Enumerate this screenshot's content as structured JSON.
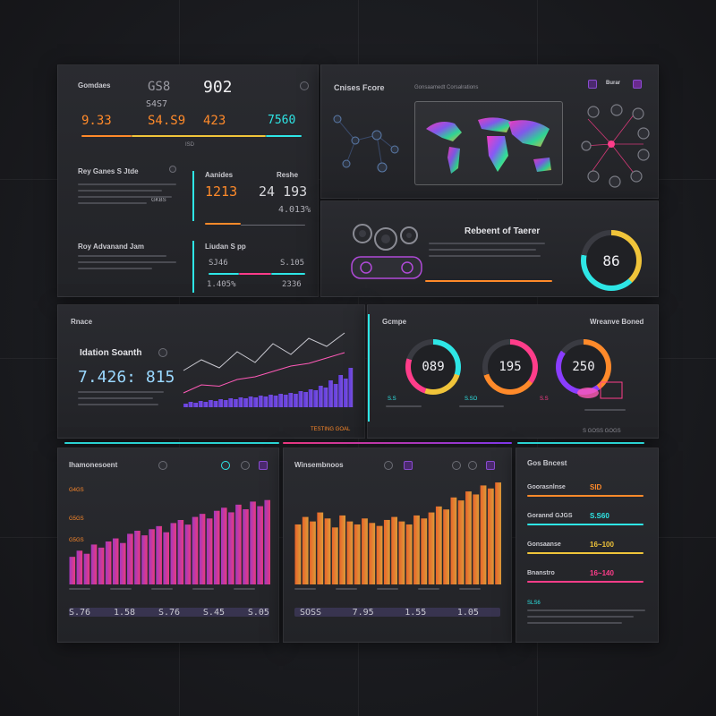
{
  "top_left": {
    "header_label": "Gomdaes",
    "big_a": "GS8",
    "big_b": "902",
    "sub_a": "S4S7",
    "val_1": "9.33",
    "val_2": "S4.S9",
    "val_3": "423",
    "val_4": "7560",
    "val_5": "ISD",
    "sec_a_title": "Rey  Ganes S Jtde",
    "sec_a_tag": "GKBS",
    "sec_b_title": "Roy  Advanand Jam",
    "mid_title": "Aanides",
    "mid_right": "Reshe",
    "mid_big": "1213",
    "mid_big2": "24 193",
    "mid_val": "4.013%",
    "low_title": "Liudan S pp",
    "low_v1": "SJ46",
    "low_v2": "S.105",
    "low_v3": "1.405%",
    "low_v4": "2336"
  },
  "map_panel": {
    "title": "Cnises Fcore",
    "subtitle": "Gonsaamedt Corsalrations",
    "btn_label": "Burar"
  },
  "reboot_panel": {
    "title": "Rebeent of Taerer",
    "gauge_value": "86"
  },
  "search_panel": {
    "label": "Rnace",
    "title": "Idation Soanth",
    "big_value": "7.426: 815",
    "footer": "TESTING  GOAL"
  },
  "gauges_panel": {
    "label": "Gcmpe",
    "right_label": "Wreanve Boned",
    "g1": "089",
    "g2": "195",
    "g3": "250",
    "g1_sub": "S.S",
    "g2_sub": "S.SO",
    "g3_sub": "S.S",
    "footer": "S GOSS  GOGS"
  },
  "chart_left": {
    "title": "Ihamonesoent",
    "label_1": "G4GS",
    "label_2": "G5GS",
    "label_3": "G5GS",
    "footer": [
      "S.76",
      "1.58",
      "S.76",
      "S.45",
      "S.05"
    ]
  },
  "chart_mid": {
    "title": "Winsembnoos",
    "footer": [
      "SOSS",
      "7.95",
      "1.55",
      "1.05"
    ]
  },
  "list_panel": {
    "title": "Gos Bncest",
    "rows": [
      {
        "label": "Goorasnlnse",
        "value": "SID"
      },
      {
        "label": "Gorannd GJGS",
        "value": "S.S60"
      },
      {
        "label": "Gonsaanse",
        "value": "16~100"
      },
      {
        "label": "Bnanstro",
        "value": "16~140"
      }
    ],
    "footer_label": "SLS6"
  },
  "chart_data": [
    {
      "type": "bar",
      "values": [
        18,
        22,
        20,
        26,
        24,
        28,
        30,
        27,
        33,
        35,
        32,
        36,
        38,
        34,
        40,
        42,
        39,
        44,
        46,
        43,
        48,
        50,
        47,
        52,
        49,
        54,
        51,
        55
      ]
    },
    {
      "type": "bar",
      "values": [
        40,
        45,
        42,
        48,
        44,
        38,
        46,
        42,
        40,
        44,
        41,
        39,
        43,
        45,
        42,
        40,
        46,
        44,
        48,
        52,
        50,
        58,
        56,
        62,
        60,
        66,
        64,
        68
      ]
    },
    {
      "type": "bar",
      "values": [
        4,
        6,
        5,
        7,
        6,
        8,
        7,
        9,
        8,
        10,
        9,
        11,
        10,
        12,
        11,
        13,
        12,
        14,
        13,
        15,
        14,
        16,
        15,
        18,
        17,
        20,
        19,
        24,
        22,
        30,
        26,
        36,
        32,
        44
      ]
    },
    {
      "type": "line",
      "values": [
        10,
        18,
        12,
        24,
        16,
        30,
        22,
        34,
        28,
        38
      ]
    },
    {
      "type": "line",
      "values": [
        4,
        10,
        9,
        14,
        16,
        20,
        24,
        26,
        30,
        34
      ]
    }
  ],
  "colors": {
    "cyan": "#2ee6e6",
    "orange": "#ff8a2a",
    "pink": "#ff3d8a",
    "purple": "#8a3dff",
    "yellow": "#f0c43a"
  }
}
